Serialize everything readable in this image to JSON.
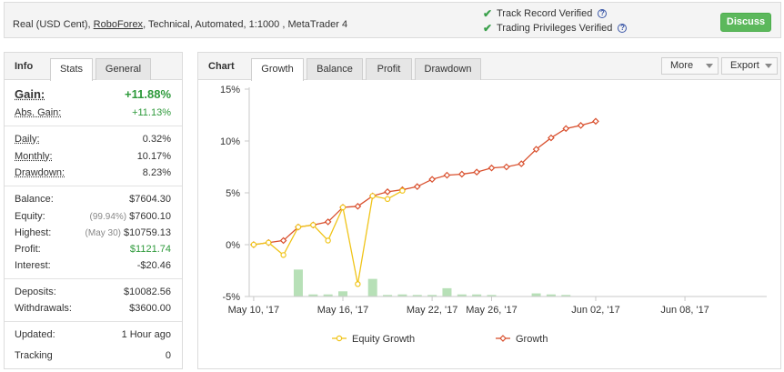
{
  "account": {
    "type": "Real (USD Cent),",
    "broker": "RoboForex",
    "details": ", Technical, Automated, 1:1000 , MetaTrader 4"
  },
  "verification": {
    "track_record": "Track Record Verified",
    "trading_privileges": "Trading Privileges Verified",
    "help_glyph": "?"
  },
  "discuss_label": "Discuss",
  "info_panel": {
    "title": "Info",
    "tabs": [
      "Stats",
      "General"
    ],
    "gain": {
      "label": "Gain:",
      "value": "+11.88%"
    },
    "abs_gain": {
      "label": "Abs. Gain:",
      "value": "+11.13%"
    },
    "daily": {
      "label": "Daily:",
      "value": "0.32%"
    },
    "monthly": {
      "label": "Monthly:",
      "value": "10.17%"
    },
    "drawdown": {
      "label": "Drawdown:",
      "value": "8.23%"
    },
    "balance": {
      "label": "Balance:",
      "value": "$7604.30"
    },
    "equity": {
      "label": "Equity:",
      "note": "(99.94%)",
      "value": "$7600.10"
    },
    "highest": {
      "label": "Highest:",
      "note": "(May 30)",
      "value": "$10759.13"
    },
    "profit": {
      "label": "Profit:",
      "value": "$1121.74"
    },
    "interest": {
      "label": "Interest:",
      "value": "-$20.46"
    },
    "deposits": {
      "label": "Deposits:",
      "value": "$10082.56"
    },
    "withdrawals": {
      "label": "Withdrawals:",
      "value": "$3600.00"
    },
    "updated": {
      "label": "Updated:",
      "value": "1 Hour ago"
    },
    "tracking": {
      "label": "Tracking",
      "value": "0"
    }
  },
  "chart_panel": {
    "title": "Chart",
    "tabs": [
      "Growth",
      "Balance",
      "Profit",
      "Drawdown"
    ],
    "more_label": "More",
    "export_label": "Export"
  },
  "chart_data": {
    "type": "line",
    "ylim": [
      -5,
      15
    ],
    "yticks": [
      "15%",
      "10%",
      "5%",
      "0%",
      "-5%"
    ],
    "ytick_values": [
      15,
      10,
      5,
      0,
      -5
    ],
    "x_ticks": [
      {
        "label": "May 10, '17",
        "day": 0
      },
      {
        "label": "May 16, '17",
        "day": 6
      },
      {
        "label": "May 22, '17",
        "day": 12
      },
      {
        "label": "May 26, '17",
        "day": 16
      },
      {
        "label": "Jun 02, '17",
        "day": 23
      },
      {
        "label": "Jun 08, '17",
        "day": 29
      }
    ],
    "x_range_days": [
      -0.3,
      34.5
    ],
    "colors": {
      "equity": "#f0c419",
      "growth": "#d9502e",
      "bars": "#b7e0b7"
    },
    "series": [
      {
        "name": "Equity Growth",
        "points": [
          [
            0,
            0.0
          ],
          [
            1,
            0.2
          ],
          [
            2,
            -1.0
          ],
          [
            3,
            1.7
          ],
          [
            4,
            1.9
          ],
          [
            5,
            0.4
          ],
          [
            6,
            3.6
          ],
          [
            7,
            -3.8
          ],
          [
            8,
            4.7
          ],
          [
            9,
            4.4
          ],
          [
            10,
            5.2
          ]
        ]
      },
      {
        "name": "Growth",
        "points": [
          [
            0,
            0.0
          ],
          [
            1,
            0.2
          ],
          [
            2,
            0.4
          ],
          [
            3,
            1.7
          ],
          [
            4,
            1.9
          ],
          [
            5,
            2.2
          ],
          [
            6,
            3.6
          ],
          [
            7,
            3.7
          ],
          [
            8,
            4.7
          ],
          [
            9,
            5.1
          ],
          [
            10,
            5.3
          ],
          [
            11,
            5.6
          ],
          [
            12,
            6.3
          ],
          [
            13,
            6.7
          ],
          [
            14,
            6.8
          ],
          [
            15,
            7.0
          ],
          [
            16,
            7.4
          ],
          [
            17,
            7.5
          ],
          [
            18,
            7.8
          ],
          [
            19,
            9.2
          ],
          [
            20,
            10.3
          ],
          [
            21,
            11.2
          ],
          [
            22,
            11.5
          ],
          [
            23,
            11.9
          ]
        ]
      }
    ],
    "legend": [
      "Equity Growth",
      "Growth"
    ],
    "bars": [
      [
        3,
        -2.4
      ],
      [
        4,
        -4.8
      ],
      [
        5,
        -4.8
      ],
      [
        6,
        -4.5
      ],
      [
        8,
        -3.3
      ],
      [
        9,
        -4.85
      ],
      [
        10,
        -4.8
      ],
      [
        11,
        -4.85
      ],
      [
        12,
        -4.85
      ],
      [
        13,
        -4.2
      ],
      [
        14,
        -4.8
      ],
      [
        15,
        -4.8
      ],
      [
        16,
        -4.85
      ],
      [
        19,
        -4.7
      ],
      [
        20,
        -4.8
      ],
      [
        21,
        -4.85
      ]
    ]
  }
}
